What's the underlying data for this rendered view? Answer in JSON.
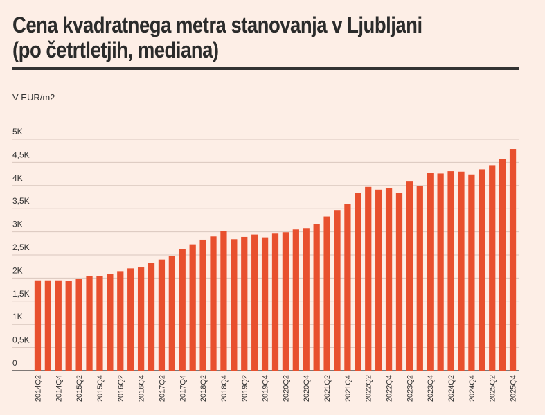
{
  "chart_data": {
    "type": "bar",
    "title": "Cena kvadratnega metra stanovanja v Ljubljani (po četrtletjih, mediana)",
    "ylabel": "V EUR/m2",
    "xlabel": "",
    "ylim": [
      0,
      5000
    ],
    "y_ticks": [
      {
        "value": 0,
        "label": "0"
      },
      {
        "value": 500,
        "label": "0,5K"
      },
      {
        "value": 1000,
        "label": "1K"
      },
      {
        "value": 1500,
        "label": "1,5K"
      },
      {
        "value": 2000,
        "label": "2K"
      },
      {
        "value": 2500,
        "label": "2,5K"
      },
      {
        "value": 3000,
        "label": "3K"
      },
      {
        "value": 3500,
        "label": "3,5K"
      },
      {
        "value": 4000,
        "label": "4K"
      },
      {
        "value": 4500,
        "label": "4,5K"
      },
      {
        "value": 5000,
        "label": "5K"
      }
    ],
    "grid": true,
    "bar_color": "#e8502e",
    "categories": [
      "2014Q2",
      "2014Q3",
      "2014Q4",
      "2015Q1",
      "2015Q2",
      "2015Q3",
      "2015Q4",
      "2016Q1",
      "2016Q2",
      "2016Q3",
      "2016Q4",
      "2017Q1",
      "2017Q2",
      "2017Q3",
      "2017Q4",
      "2018Q1",
      "2018Q2",
      "2018Q3",
      "2018Q4",
      "2019Q1",
      "2019Q2",
      "2019Q3",
      "2019Q4",
      "2020Q1",
      "2020Q2",
      "2020Q3",
      "2020Q4",
      "2021Q1",
      "2021Q2",
      "2021Q3",
      "2021Q4",
      "2022Q1",
      "2022Q2",
      "2022Q3",
      "2022Q4",
      "2023Q1",
      "2023Q2",
      "2023Q3",
      "2023Q4",
      "2024Q1",
      "2024Q2",
      "2024Q3",
      "2024Q4",
      "2025Q1",
      "2025Q2",
      "2025Q3",
      "2025Q4"
    ],
    "x_tick_labels": [
      "2014Q2",
      "2014Q4",
      "2015Q2",
      "2015Q4",
      "2016Q2",
      "2016Q4",
      "2017Q2",
      "2017Q4",
      "2018Q2",
      "2018Q4",
      "2019Q2",
      "2019Q4",
      "2020Q2",
      "2020Q4",
      "2021Q2",
      "2021Q4",
      "2022Q2",
      "2022Q4",
      "2023Q2",
      "2023Q4",
      "2024Q2",
      "2024Q4",
      "2025Q2",
      "2025Q4"
    ],
    "values": [
      1950,
      1950,
      1950,
      1940,
      1980,
      2040,
      2040,
      2090,
      2150,
      2210,
      2230,
      2330,
      2400,
      2480,
      2630,
      2730,
      2830,
      2900,
      3020,
      2840,
      2890,
      2940,
      2880,
      2960,
      2990,
      3050,
      3080,
      3160,
      3330,
      3470,
      3600,
      3840,
      3970,
      3910,
      3940,
      3840,
      4100,
      3990,
      4270,
      4260,
      4310,
      4300,
      4240,
      4350,
      4440,
      4580,
      4790
    ]
  }
}
